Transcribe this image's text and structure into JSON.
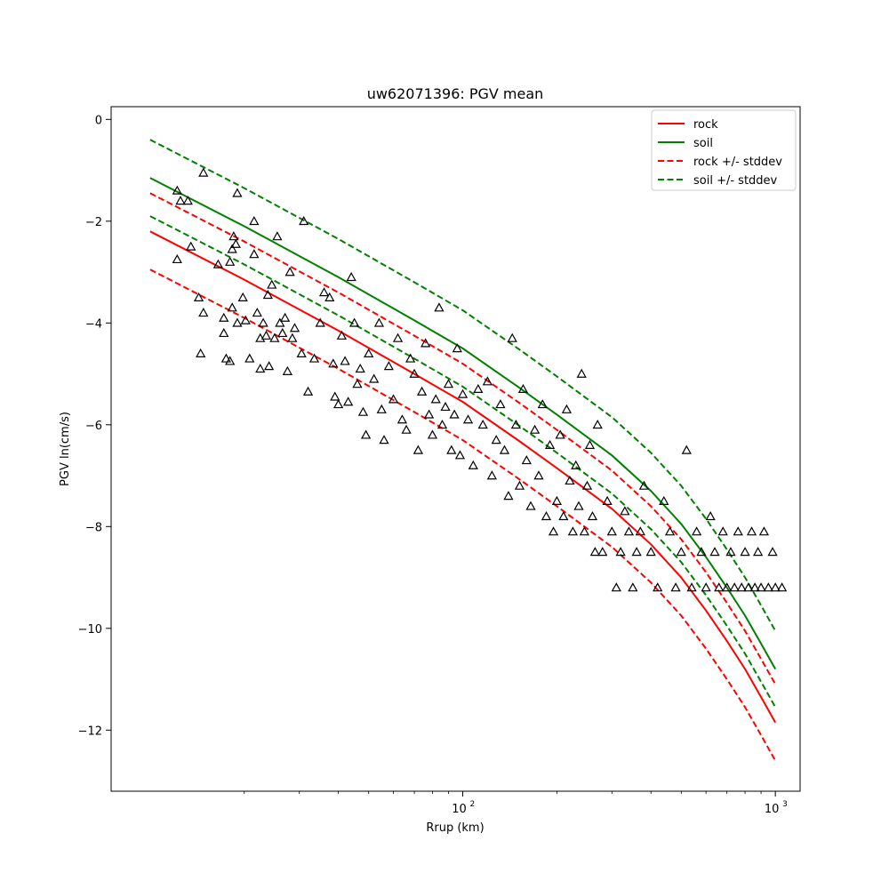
{
  "chart_data": {
    "type": "scatter",
    "title": "uw62071396: PGV mean",
    "xlabel": "Rrup (km)",
    "ylabel": "PGV ln(cm/s)",
    "xscale": "log",
    "xlim": [
      7.5,
      1200
    ],
    "ylim": [
      -13.2,
      0.25
    ],
    "xticks": [
      {
        "base": "10",
        "exp": "2",
        "value": 100
      },
      {
        "base": "10",
        "exp": "3",
        "value": 1000
      }
    ],
    "yticks": [
      0,
      -2,
      -4,
      -6,
      -8,
      -10,
      -12
    ],
    "grid": false,
    "legend_position": "top-right",
    "marker": "open-triangle",
    "colors": {
      "rock": "#ff0000",
      "soil": "#008000",
      "points": "#000000"
    },
    "series": [
      {
        "name": "rock",
        "color": "#ff0000",
        "style": "solid",
        "x": [
          10,
          20,
          40,
          70,
          100,
          150,
          200,
          300,
          400,
          500,
          600,
          700,
          800,
          900,
          1000
        ],
        "y": [
          -2.2,
          -3.15,
          -4.15,
          -5.0,
          -5.55,
          -6.3,
          -6.85,
          -7.65,
          -8.35,
          -9.0,
          -9.65,
          -10.25,
          -10.8,
          -11.35,
          -11.85
        ]
      },
      {
        "name": "soil",
        "color": "#008000",
        "style": "solid",
        "x": [
          10,
          20,
          40,
          70,
          100,
          150,
          200,
          300,
          400,
          500,
          600,
          700,
          800,
          900,
          1000
        ],
        "y": [
          -1.15,
          -2.1,
          -3.1,
          -3.95,
          -4.5,
          -5.25,
          -5.8,
          -6.6,
          -7.3,
          -7.95,
          -8.6,
          -9.2,
          -9.75,
          -10.3,
          -10.8
        ]
      },
      {
        "name": "rock +/- stddev",
        "color": "#ff0000",
        "style": "dashed",
        "upper": {
          "x": [
            10,
            20,
            40,
            70,
            100,
            150,
            200,
            300,
            400,
            500,
            600,
            700,
            800,
            900,
            1000
          ],
          "y": [
            -1.45,
            -2.4,
            -3.4,
            -4.25,
            -4.8,
            -5.55,
            -6.1,
            -6.9,
            -7.6,
            -8.25,
            -8.9,
            -9.5,
            -10.05,
            -10.6,
            -11.1
          ]
        },
        "lower": {
          "x": [
            10,
            20,
            40,
            70,
            100,
            150,
            200,
            300,
            400,
            500,
            600,
            700,
            800,
            900,
            1000
          ],
          "y": [
            -2.95,
            -3.9,
            -4.9,
            -5.75,
            -6.3,
            -7.05,
            -7.6,
            -8.4,
            -9.1,
            -9.75,
            -10.4,
            -11.0,
            -11.55,
            -12.1,
            -12.6
          ]
        }
      },
      {
        "name": "soil +/- stddev",
        "color": "#008000",
        "style": "dashed",
        "upper": {
          "x": [
            10,
            20,
            40,
            70,
            100,
            150,
            200,
            300,
            400,
            500,
            600,
            700,
            800,
            900,
            1000
          ],
          "y": [
            -0.4,
            -1.35,
            -2.35,
            -3.2,
            -3.75,
            -4.5,
            -5.05,
            -5.85,
            -6.55,
            -7.2,
            -7.85,
            -8.45,
            -9.0,
            -9.55,
            -10.05
          ]
        },
        "lower": {
          "x": [
            10,
            20,
            40,
            70,
            100,
            150,
            200,
            300,
            400,
            500,
            600,
            700,
            800,
            900,
            1000
          ],
          "y": [
            -1.9,
            -2.85,
            -3.85,
            -4.7,
            -5.25,
            -6.0,
            -6.55,
            -7.35,
            -8.05,
            -8.7,
            -9.35,
            -9.95,
            -10.5,
            -11.05,
            -11.55
          ]
        }
      }
    ],
    "points": [
      [
        12.2,
        -1.4
      ],
      [
        12.5,
        -1.6
      ],
      [
        13.2,
        -1.6
      ],
      [
        13.5,
        -2.5
      ],
      [
        12.2,
        -2.75
      ],
      [
        14.8,
        -1.05
      ],
      [
        16.5,
        -2.85
      ],
      [
        19.0,
        -1.45
      ],
      [
        21.5,
        -2.0
      ],
      [
        14.3,
        -3.5
      ],
      [
        14.8,
        -3.8
      ],
      [
        14.5,
        -4.6
      ],
      [
        17.2,
        -3.9
      ],
      [
        17.2,
        -4.2
      ],
      [
        17.5,
        -4.7
      ],
      [
        18.0,
        -4.75
      ],
      [
        18.3,
        -3.7
      ],
      [
        18.0,
        -2.8
      ],
      [
        18.3,
        -2.55
      ],
      [
        18.5,
        -2.3
      ],
      [
        18.8,
        -2.45
      ],
      [
        19.0,
        -4.0
      ],
      [
        19.8,
        -3.5
      ],
      [
        20.2,
        -3.95
      ],
      [
        20.8,
        -4.7
      ],
      [
        21.5,
        -2.65
      ],
      [
        22.0,
        -3.8
      ],
      [
        22.5,
        -4.9
      ],
      [
        22.5,
        -4.3
      ],
      [
        23.0,
        -4.0
      ],
      [
        23.5,
        -4.25
      ],
      [
        23.8,
        -3.45
      ],
      [
        24.0,
        -4.85
      ],
      [
        24.5,
        -3.25
      ],
      [
        25.0,
        -4.3
      ],
      [
        25.5,
        -2.3
      ],
      [
        26.0,
        -4.0
      ],
      [
        26.5,
        -4.2
      ],
      [
        27.0,
        -3.9
      ],
      [
        27.5,
        -4.95
      ],
      [
        28.0,
        -3.0
      ],
      [
        28.5,
        -4.3
      ],
      [
        29.0,
        -4.1
      ],
      [
        30.5,
        -4.6
      ],
      [
        31.0,
        -2.0
      ],
      [
        32.0,
        -5.35
      ],
      [
        33.5,
        -4.7
      ],
      [
        35.0,
        -4.0
      ],
      [
        36.0,
        -3.4
      ],
      [
        37.5,
        -3.5
      ],
      [
        38.5,
        -4.8
      ],
      [
        39.0,
        -5.45
      ],
      [
        40.0,
        -5.6
      ],
      [
        41.0,
        -4.25
      ],
      [
        42.0,
        -4.75
      ],
      [
        43.0,
        -5.55
      ],
      [
        44.0,
        -3.1
      ],
      [
        45.0,
        -4.0
      ],
      [
        46.0,
        -5.2
      ],
      [
        47.0,
        -4.9
      ],
      [
        48.0,
        -5.75
      ],
      [
        49.0,
        -6.2
      ],
      [
        50.0,
        -4.6
      ],
      [
        52.0,
        -5.1
      ],
      [
        54.0,
        -4.0
      ],
      [
        55.0,
        -5.7
      ],
      [
        56.0,
        -6.3
      ],
      [
        58.0,
        -4.85
      ],
      [
        60.0,
        -5.5
      ],
      [
        62.0,
        -4.3
      ],
      [
        64.0,
        -5.9
      ],
      [
        66.0,
        -6.1
      ],
      [
        68.0,
        -4.7
      ],
      [
        70.0,
        -5.0
      ],
      [
        72.0,
        -6.5
      ],
      [
        74.0,
        -5.35
      ],
      [
        76.0,
        -4.4
      ],
      [
        78.0,
        -5.8
      ],
      [
        80.0,
        -6.2
      ],
      [
        82.0,
        -5.5
      ],
      [
        84.0,
        -3.7
      ],
      [
        86.0,
        -6.0
      ],
      [
        88.0,
        -5.65
      ],
      [
        90.0,
        -5.2
      ],
      [
        92.0,
        -6.5
      ],
      [
        94.0,
        -5.8
      ],
      [
        96.0,
        -4.5
      ],
      [
        98.0,
        -6.6
      ],
      [
        100.0,
        -5.4
      ],
      [
        104.0,
        -5.9
      ],
      [
        108.0,
        -6.8
      ],
      [
        112.0,
        -5.3
      ],
      [
        116.0,
        -6.0
      ],
      [
        120.0,
        -5.15
      ],
      [
        124.0,
        -7.0
      ],
      [
        128.0,
        -6.3
      ],
      [
        132.0,
        -5.6
      ],
      [
        136.0,
        -6.5
      ],
      [
        140.0,
        -7.4
      ],
      [
        144.0,
        -4.3
      ],
      [
        148.0,
        -6.0
      ],
      [
        152.0,
        -7.2
      ],
      [
        156.0,
        -5.3
      ],
      [
        160.0,
        -6.7
      ],
      [
        165.0,
        -7.6
      ],
      [
        170.0,
        -6.1
      ],
      [
        175.0,
        -7.0
      ],
      [
        180.0,
        -5.6
      ],
      [
        185.0,
        -7.8
      ],
      [
        190.0,
        -6.4
      ],
      [
        195.0,
        -8.1
      ],
      [
        200.0,
        -7.5
      ],
      [
        205.0,
        -6.2
      ],
      [
        210.0,
        -7.8
      ],
      [
        215.0,
        -5.7
      ],
      [
        220.0,
        -7.1
      ],
      [
        225.0,
        -8.1
      ],
      [
        230.0,
        -6.8
      ],
      [
        235.0,
        -7.6
      ],
      [
        240.0,
        -5.0
      ],
      [
        245.0,
        -8.1
      ],
      [
        250.0,
        -7.2
      ],
      [
        255.0,
        -6.4
      ],
      [
        260.0,
        -7.8
      ],
      [
        265.0,
        -8.5
      ],
      [
        270.0,
        -6.0
      ],
      [
        280.0,
        -8.5
      ],
      [
        290.0,
        -7.5
      ],
      [
        300.0,
        -8.1
      ],
      [
        310.0,
        -9.2
      ],
      [
        320.0,
        -8.5
      ],
      [
        330.0,
        -7.7
      ],
      [
        340.0,
        -8.1
      ],
      [
        350.0,
        -9.2
      ],
      [
        360.0,
        -8.5
      ],
      [
        370.0,
        -8.1
      ],
      [
        380.0,
        -7.2
      ],
      [
        400.0,
        -8.5
      ],
      [
        420.0,
        -9.2
      ],
      [
        440.0,
        -7.5
      ],
      [
        460.0,
        -8.1
      ],
      [
        480.0,
        -9.2
      ],
      [
        500.0,
        -8.5
      ],
      [
        520.0,
        -6.5
      ],
      [
        540.0,
        -9.2
      ],
      [
        560.0,
        -8.1
      ],
      [
        580.0,
        -8.5
      ],
      [
        600.0,
        -9.2
      ],
      [
        620.0,
        -7.8
      ],
      [
        640.0,
        -8.5
      ],
      [
        660.0,
        -9.2
      ],
      [
        680.0,
        -8.1
      ],
      [
        700.0,
        -9.2
      ],
      [
        720.0,
        -8.5
      ],
      [
        740.0,
        -9.2
      ],
      [
        760.0,
        -8.1
      ],
      [
        780.0,
        -9.2
      ],
      [
        800.0,
        -8.5
      ],
      [
        820.0,
        -9.2
      ],
      [
        840.0,
        -8.1
      ],
      [
        860.0,
        -9.2
      ],
      [
        880.0,
        -8.5
      ],
      [
        900.0,
        -9.2
      ],
      [
        920.0,
        -8.1
      ],
      [
        950.0,
        -9.2
      ],
      [
        980.0,
        -8.5
      ],
      [
        1000.0,
        -9.2
      ],
      [
        1050.0,
        -9.2
      ]
    ]
  }
}
